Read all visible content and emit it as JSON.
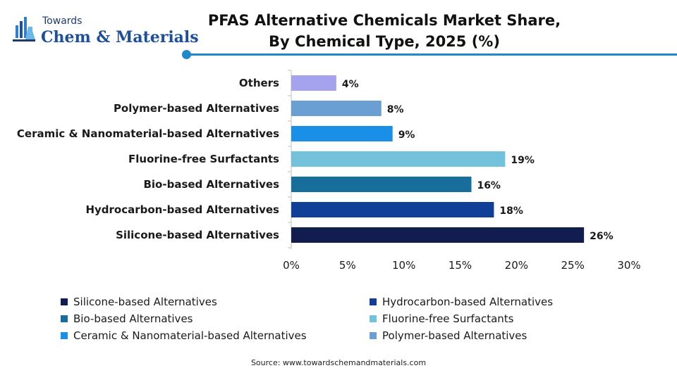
{
  "brand": {
    "small": "Towards",
    "big": "Chem & Materials"
  },
  "header": {
    "title_line1": "PFAS Alternative Chemicals Market Share,",
    "title_line2": "By Chemical Type, 2025 (%)",
    "accent_color": "#1e88c8"
  },
  "chart_data": {
    "type": "bar",
    "orientation": "horizontal",
    "title": "PFAS Alternative Chemicals Market Share, By Chemical Type, 2025 (%)",
    "categories": [
      "Others",
      "Polymer-based Alternatives",
      "Ceramic & Nanomaterial-based Alternatives",
      "Fluorine-free Surfactants",
      "Bio-based Alternatives",
      "Hydrocarbon-based Alternatives",
      "Silicone-based Alternatives"
    ],
    "values": [
      4,
      8,
      9,
      19,
      16,
      18,
      26
    ],
    "data_labels": [
      "4%",
      "8%",
      "9%",
      "19%",
      "16%",
      "18%",
      "26%"
    ],
    "colors": [
      "#a5a2ee",
      "#6a9fd4",
      "#1a8fe8",
      "#72c2dc",
      "#176e9b",
      "#113f97",
      "#111c4f"
    ],
    "xlim": [
      0,
      30
    ],
    "xticks": [
      0,
      5,
      10,
      15,
      20,
      25,
      30
    ],
    "xtick_labels": [
      "0%",
      "5%",
      "10%",
      "15%",
      "20%",
      "25%",
      "30%"
    ],
    "grid": false,
    "legend_position": "bottom"
  },
  "legend": [
    {
      "label": "Silicone-based Alternatives",
      "color": "#111c4f"
    },
    {
      "label": "Hydrocarbon-based Alternatives",
      "color": "#113f97"
    },
    {
      "label": "Bio-based Alternatives",
      "color": "#176e9b"
    },
    {
      "label": "Fluorine-free Surfactants",
      "color": "#72c2dc"
    },
    {
      "label": "Ceramic & Nanomaterial-based Alternatives",
      "color": "#1a8fe8"
    },
    {
      "label": "Polymer-based Alternatives",
      "color": "#6a9fd4"
    }
  ],
  "footer": {
    "source": "Source: www.towardschemandmaterials.com"
  }
}
